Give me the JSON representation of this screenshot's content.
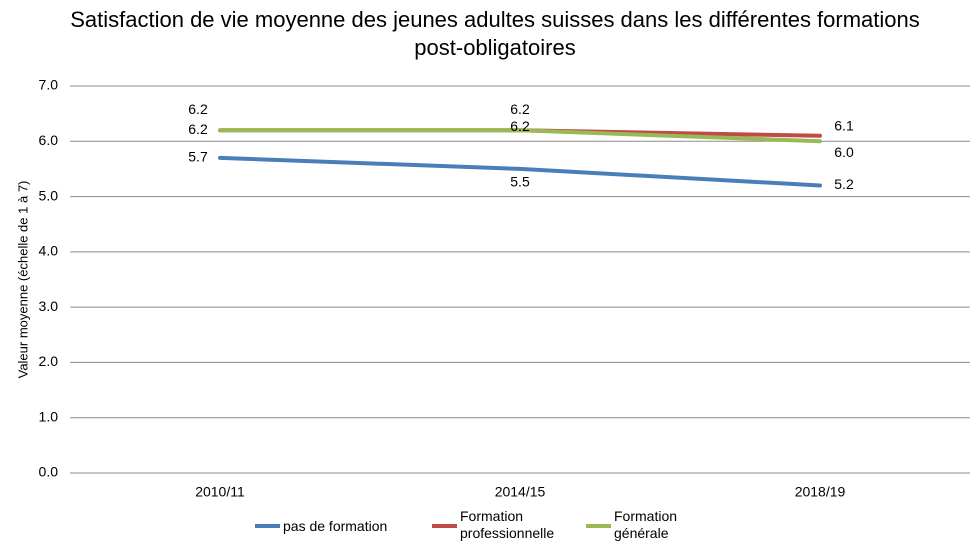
{
  "chart_data": {
    "type": "line",
    "title": "Satisfaction de vie moyenne des jeunes adultes suisses dans les différentes formations post-obligatoires",
    "y_label": "Valeur moyenne (échelle de 1 à 7)",
    "categories": [
      "2010/11",
      "2014/15",
      "2018/19"
    ],
    "series": [
      {
        "name": "pas de formation",
        "color": "#4a7ebb",
        "values": [
          5.7,
          5.5,
          5.2
        ],
        "value_labels": [
          "5.7",
          "5.5",
          "5.2"
        ]
      },
      {
        "name": "Formation professionnelle",
        "color": "#be4b48",
        "values": [
          6.2,
          6.2,
          6.1
        ],
        "value_labels": [
          "6.2",
          "6.2",
          "6.1"
        ]
      },
      {
        "name": "Formation générale",
        "color": "#98b954",
        "values": [
          6.2,
          6.2,
          6.0
        ],
        "value_labels": [
          "6.2",
          "6.2",
          "6.0"
        ]
      }
    ],
    "ylim": [
      0,
      7
    ],
    "yticks": [
      {
        "value": 0,
        "label": "0.0"
      },
      {
        "value": 1,
        "label": "1.0"
      },
      {
        "value": 2,
        "label": "2.0"
      },
      {
        "value": 3,
        "label": "3.0"
      },
      {
        "value": 4,
        "label": "4.0"
      },
      {
        "value": 5,
        "label": "5.0"
      },
      {
        "value": 6,
        "label": "6.0"
      },
      {
        "value": 7,
        "label": "7.0"
      }
    ],
    "grid": true,
    "legend": "bottom"
  }
}
